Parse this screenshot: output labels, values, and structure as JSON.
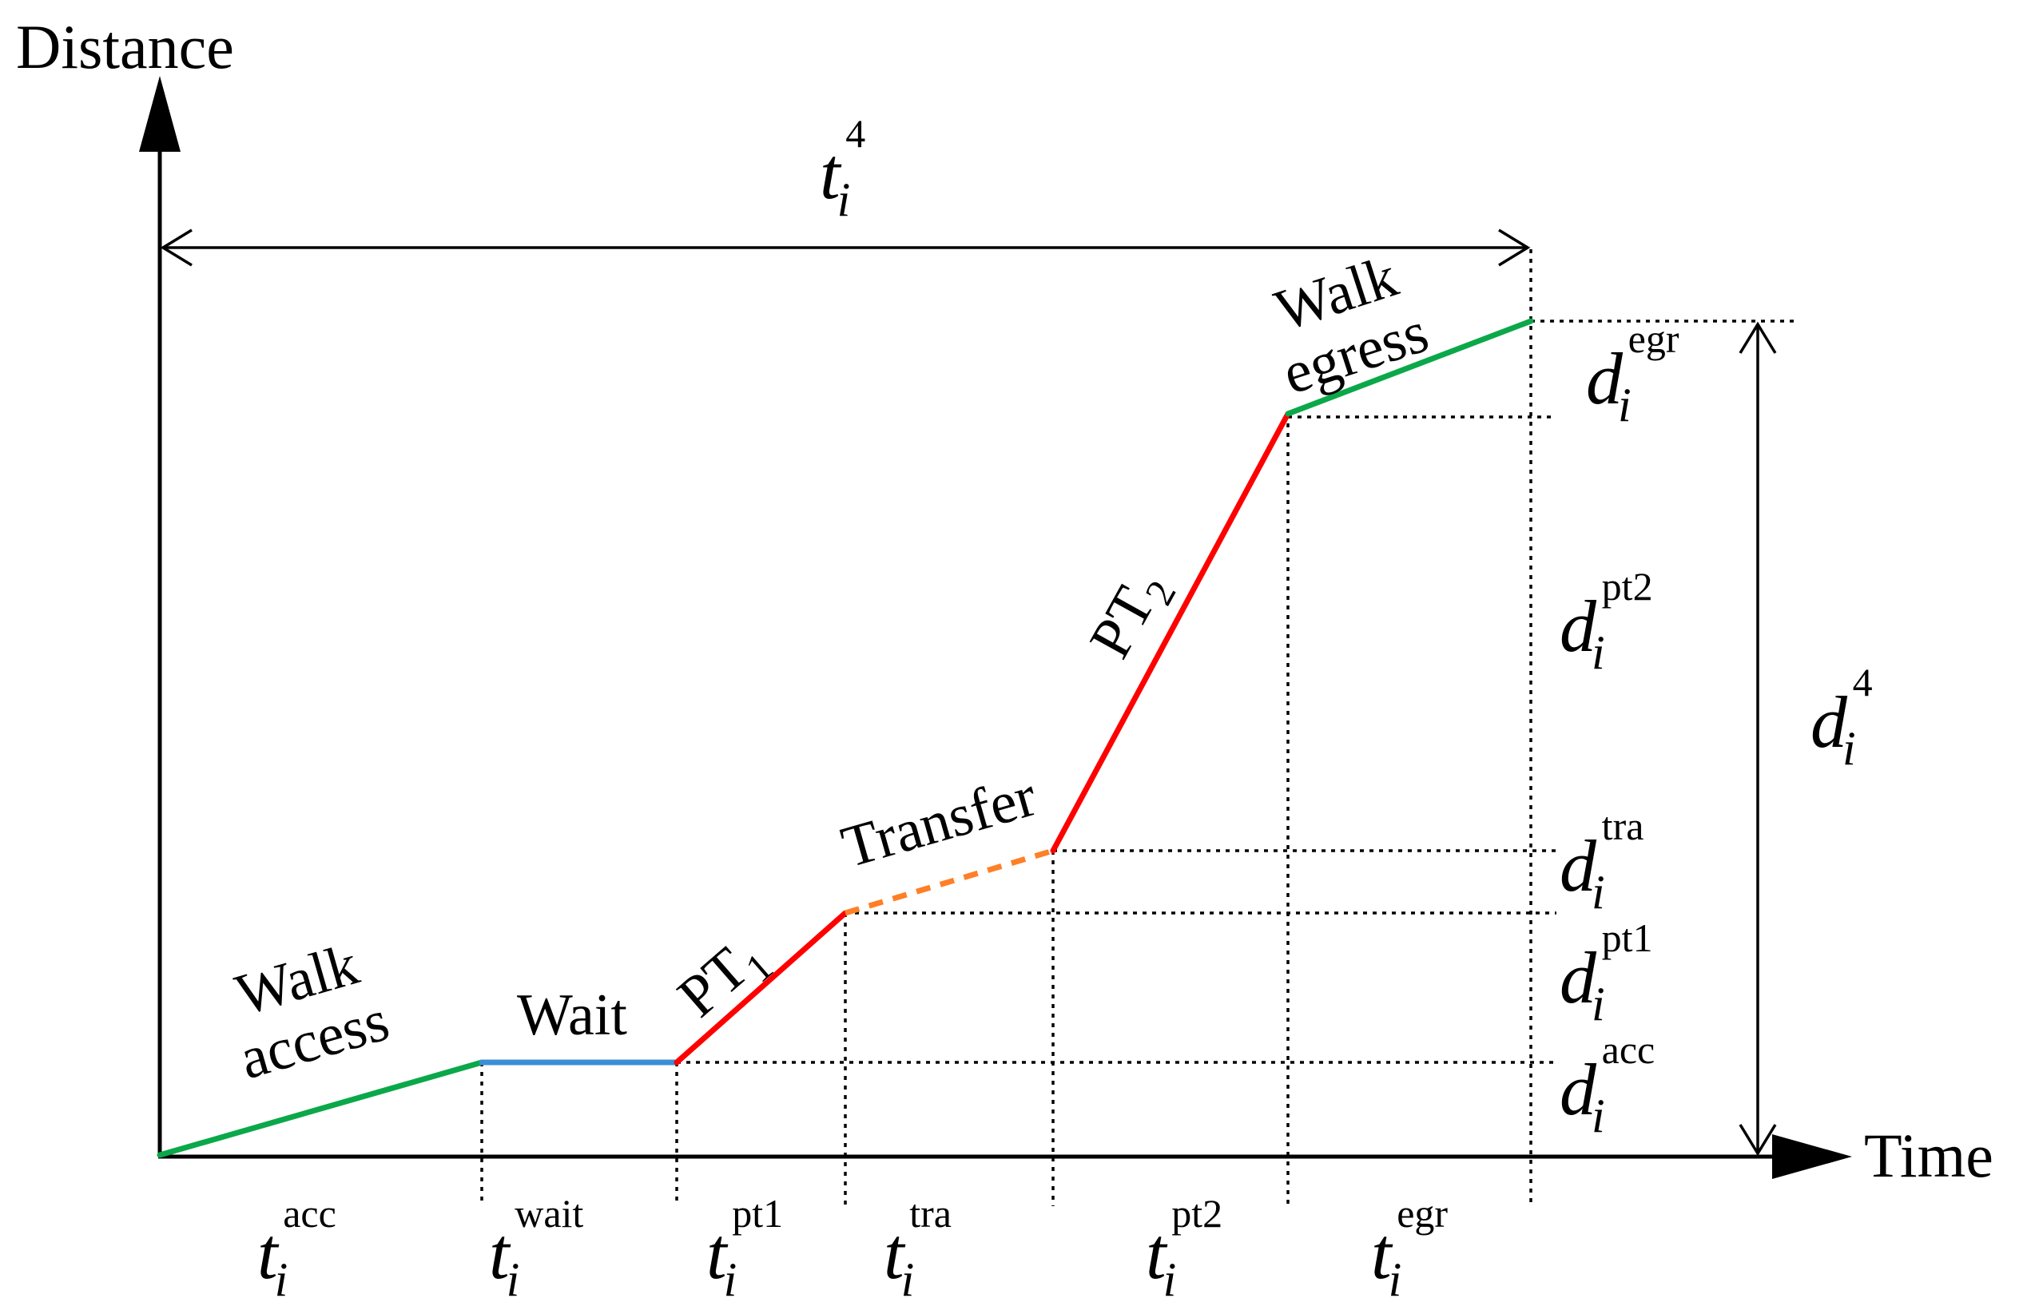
{
  "axes": {
    "y_label": "Distance",
    "x_label": "Time"
  },
  "segments": [
    {
      "id": "walk-access",
      "label_lines": [
        "Walk",
        "access"
      ],
      "color": "#0BA84A",
      "style": "solid"
    },
    {
      "id": "wait",
      "label_lines": [
        "Wait"
      ],
      "color": "#3B8FD6",
      "style": "solid"
    },
    {
      "id": "pt1",
      "label": "PT",
      "label_sub": "1",
      "color": "#FF0000",
      "style": "solid"
    },
    {
      "id": "transfer",
      "label_lines": [
        "Transfer"
      ],
      "color": "#FF7F27",
      "style": "dashed"
    },
    {
      "id": "pt2",
      "label": "PT",
      "label_sub": "2",
      "color": "#FF0000",
      "style": "solid"
    },
    {
      "id": "walk-egress",
      "label_lines": [
        "Walk",
        "egress"
      ],
      "color": "#0BA84A",
      "style": "solid"
    }
  ],
  "time_labels": [
    {
      "symbol": "t",
      "sub": "i",
      "sup": "acc"
    },
    {
      "symbol": "t",
      "sub": "i",
      "sup": "wait"
    },
    {
      "symbol": "t",
      "sub": "i",
      "sup": "pt1"
    },
    {
      "symbol": "t",
      "sub": "i",
      "sup": "tra"
    },
    {
      "symbol": "t",
      "sub": "i",
      "sup": "pt2"
    },
    {
      "symbol": "t",
      "sub": "i",
      "sup": "egr"
    }
  ],
  "distance_labels": [
    {
      "symbol": "d",
      "sub": "i",
      "sup": "egr"
    },
    {
      "symbol": "d",
      "sub": "i",
      "sup": "pt2"
    },
    {
      "symbol": "d",
      "sub": "i",
      "sup": "tra"
    },
    {
      "symbol": "d",
      "sub": "i",
      "sup": "pt1"
    },
    {
      "symbol": "d",
      "sub": "i",
      "sup": "acc"
    }
  ],
  "total_time": {
    "symbol": "t",
    "sub": "i",
    "sup": "4"
  },
  "total_distance": {
    "symbol": "d",
    "sub": "i",
    "sup": "4"
  }
}
